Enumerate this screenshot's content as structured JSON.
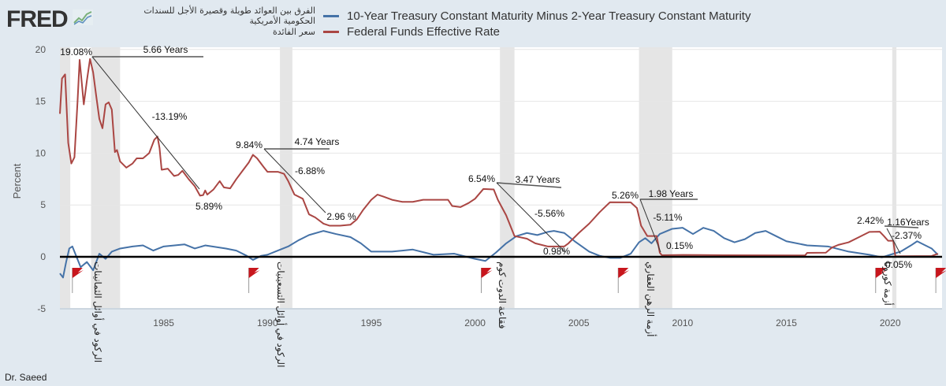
{
  "header": {
    "logo": "FRED",
    "logo_icon": "chart-line-icon"
  },
  "legend": [
    {
      "ar": "الفرق بين العوائد طويلة وقصيرة الأجل للسندات الحكومية الأمريكية",
      "en": "10-Year Treasury Constant Maturity Minus 2-Year Treasury Constant Maturity",
      "color": "#4572a7"
    },
    {
      "ar": "سعر الفائدة",
      "en": "Federal Funds Effective Rate",
      "color": "#aa4643"
    }
  ],
  "credit": "Dr. Saeed",
  "chart_data": {
    "type": "line",
    "ylabel": "Percent",
    "xlabel": "",
    "ylim": [
      -5,
      20
    ],
    "xlim": [
      1980,
      2022.5
    ],
    "yticks": [
      "20",
      "15",
      "10",
      "5",
      "0",
      "-5"
    ],
    "ytick_values": [
      20,
      15,
      10,
      5,
      0,
      -5
    ],
    "xticks": [
      "1985",
      "1990",
      "1995",
      "2000",
      "2005",
      "2010",
      "2015",
      "2020"
    ],
    "xtick_values": [
      1985,
      1990,
      1995,
      2000,
      2005,
      2010,
      2015,
      2020
    ],
    "recessions": [
      [
        1980.0,
        1980.5
      ],
      [
        1981.5,
        1982.9
      ],
      [
        1990.6,
        1991.2
      ],
      [
        2001.2,
        2001.9
      ],
      [
        2007.9,
        2009.5
      ],
      [
        2020.1,
        2020.3
      ]
    ],
    "recession_labels": [
      "الركود في أوائل الثمانينات",
      "الركود في أوائل التسعينيات",
      "فقاعة الدوت كوم",
      "أزمة الرهن العقاري",
      "أزمة كورونا"
    ],
    "flags": [
      1980.6,
      1989.1,
      2000.3,
      2006.9,
      2019.3,
      2022.2
    ],
    "series": [
      {
        "name": "10-Year Treasury Constant Maturity Minus 2-Year Treasury Constant Maturity",
        "color": "#4572a7",
        "points": [
          [
            1980.0,
            -1.6
          ],
          [
            1980.15,
            -2.0
          ],
          [
            1980.3,
            -0.5
          ],
          [
            1980.45,
            0.8
          ],
          [
            1980.6,
            1.0
          ],
          [
            1980.8,
            0.0
          ],
          [
            1981.0,
            -1.0
          ],
          [
            1981.3,
            -0.5
          ],
          [
            1981.6,
            -1.3
          ],
          [
            1981.9,
            0.3
          ],
          [
            1982.2,
            -0.2
          ],
          [
            1982.5,
            0.5
          ],
          [
            1982.9,
            0.8
          ],
          [
            1983.5,
            1.0
          ],
          [
            1984.0,
            1.1
          ],
          [
            1984.5,
            0.6
          ],
          [
            1985.0,
            1.0
          ],
          [
            1986.0,
            1.2
          ],
          [
            1986.5,
            0.8
          ],
          [
            1987.0,
            1.1
          ],
          [
            1988.0,
            0.8
          ],
          [
            1988.5,
            0.6
          ],
          [
            1989.0,
            0.1
          ],
          [
            1989.3,
            -0.3
          ],
          [
            1989.7,
            0.1
          ],
          [
            1990.0,
            0.2
          ],
          [
            1990.5,
            0.6
          ],
          [
            1991.0,
            1.0
          ],
          [
            1991.5,
            1.6
          ],
          [
            1992.0,
            2.1
          ],
          [
            1992.7,
            2.5
          ],
          [
            1993.3,
            2.2
          ],
          [
            1994.0,
            1.9
          ],
          [
            1994.5,
            1.3
          ],
          [
            1995.0,
            0.5
          ],
          [
            1996.0,
            0.5
          ],
          [
            1997.0,
            0.7
          ],
          [
            1998.0,
            0.2
          ],
          [
            1999.0,
            0.3
          ],
          [
            2000.0,
            -0.2
          ],
          [
            2000.5,
            -0.4
          ],
          [
            2001.0,
            0.4
          ],
          [
            2001.5,
            1.3
          ],
          [
            2002.0,
            2.0
          ],
          [
            2002.5,
            2.3
          ],
          [
            2003.0,
            2.1
          ],
          [
            2003.5,
            2.4
          ],
          [
            2003.8,
            2.5
          ],
          [
            2004.3,
            2.3
          ],
          [
            2004.8,
            1.5
          ],
          [
            2005.5,
            0.5
          ],
          [
            2006.0,
            0.1
          ],
          [
            2006.5,
            -0.1
          ],
          [
            2007.0,
            -0.1
          ],
          [
            2007.5,
            0.3
          ],
          [
            2007.9,
            1.4
          ],
          [
            2008.2,
            1.8
          ],
          [
            2008.5,
            1.3
          ],
          [
            2008.9,
            2.2
          ],
          [
            2009.5,
            2.7
          ],
          [
            2010.0,
            2.8
          ],
          [
            2010.5,
            2.2
          ],
          [
            2011.0,
            2.8
          ],
          [
            2011.5,
            2.5
          ],
          [
            2012.0,
            1.8
          ],
          [
            2012.5,
            1.4
          ],
          [
            2013.0,
            1.7
          ],
          [
            2013.5,
            2.3
          ],
          [
            2014.0,
            2.5
          ],
          [
            2014.5,
            2.0
          ],
          [
            2015.0,
            1.5
          ],
          [
            2016.0,
            1.1
          ],
          [
            2017.0,
            1.0
          ],
          [
            2018.0,
            0.5
          ],
          [
            2019.0,
            0.2
          ],
          [
            2019.6,
            -0.05
          ],
          [
            2020.0,
            0.2
          ],
          [
            2020.5,
            0.5
          ],
          [
            2021.0,
            1.1
          ],
          [
            2021.3,
            1.5
          ],
          [
            2021.6,
            1.2
          ],
          [
            2022.0,
            0.8
          ],
          [
            2022.3,
            0.2
          ]
        ]
      },
      {
        "name": "Federal Funds Effective Rate",
        "color": "#aa4643",
        "points": [
          [
            1980.0,
            13.8
          ],
          [
            1980.1,
            17.2
          ],
          [
            1980.25,
            17.6
          ],
          [
            1980.4,
            11.0
          ],
          [
            1980.55,
            9.0
          ],
          [
            1980.7,
            9.6
          ],
          [
            1980.85,
            15.0
          ],
          [
            1980.95,
            19.0
          ],
          [
            1981.15,
            14.7
          ],
          [
            1981.3,
            17.0
          ],
          [
            1981.45,
            19.08
          ],
          [
            1981.6,
            17.8
          ],
          [
            1981.75,
            15.5
          ],
          [
            1981.9,
            13.3
          ],
          [
            1982.05,
            12.4
          ],
          [
            1982.2,
            14.7
          ],
          [
            1982.35,
            14.9
          ],
          [
            1982.5,
            14.2
          ],
          [
            1982.65,
            10.1
          ],
          [
            1982.75,
            10.3
          ],
          [
            1982.9,
            9.2
          ],
          [
            1983.2,
            8.6
          ],
          [
            1983.5,
            9.0
          ],
          [
            1983.7,
            9.5
          ],
          [
            1984.0,
            9.5
          ],
          [
            1984.3,
            10.0
          ],
          [
            1984.55,
            11.3
          ],
          [
            1984.7,
            11.6
          ],
          [
            1984.8,
            10.5
          ],
          [
            1984.9,
            8.4
          ],
          [
            1985.2,
            8.5
          ],
          [
            1985.5,
            7.8
          ],
          [
            1985.7,
            7.9
          ],
          [
            1985.9,
            8.3
          ],
          [
            1986.2,
            7.5
          ],
          [
            1986.5,
            6.8
          ],
          [
            1986.75,
            5.9
          ],
          [
            1986.9,
            5.95
          ],
          [
            1987.0,
            6.4
          ],
          [
            1987.1,
            6.0
          ],
          [
            1987.4,
            6.5
          ],
          [
            1987.7,
            7.3
          ],
          [
            1987.9,
            6.7
          ],
          [
            1988.2,
            6.6
          ],
          [
            1988.5,
            7.5
          ],
          [
            1988.8,
            8.3
          ],
          [
            1989.1,
            9.1
          ],
          [
            1989.3,
            9.84
          ],
          [
            1989.5,
            9.5
          ],
          [
            1989.8,
            8.7
          ],
          [
            1990.0,
            8.2
          ],
          [
            1990.5,
            8.2
          ],
          [
            1990.8,
            8.0
          ],
          [
            1991.0,
            7.3
          ],
          [
            1991.3,
            6.0
          ],
          [
            1991.7,
            5.6
          ],
          [
            1992.0,
            4.1
          ],
          [
            1992.3,
            3.8
          ],
          [
            1992.7,
            3.2
          ],
          [
            1993.0,
            3.0
          ],
          [
            1993.5,
            3.0
          ],
          [
            1994.0,
            3.1
          ],
          [
            1994.3,
            3.6
          ],
          [
            1994.6,
            4.5
          ],
          [
            1995.0,
            5.5
          ],
          [
            1995.3,
            6.0
          ],
          [
            1995.6,
            5.8
          ],
          [
            1996.0,
            5.5
          ],
          [
            1996.5,
            5.3
          ],
          [
            1997.0,
            5.3
          ],
          [
            1997.5,
            5.5
          ],
          [
            1998.0,
            5.5
          ],
          [
            1998.7,
            5.5
          ],
          [
            1998.9,
            4.9
          ],
          [
            1999.3,
            4.8
          ],
          [
            1999.7,
            5.2
          ],
          [
            2000.0,
            5.6
          ],
          [
            2000.4,
            6.54
          ],
          [
            2000.9,
            6.5
          ],
          [
            2001.1,
            5.5
          ],
          [
            2001.5,
            4.0
          ],
          [
            2001.9,
            2.0
          ],
          [
            2002.5,
            1.75
          ],
          [
            2002.9,
            1.3
          ],
          [
            2003.5,
            1.0
          ],
          [
            2004.3,
            1.0
          ],
          [
            2004.5,
            1.3
          ],
          [
            2005.0,
            2.3
          ],
          [
            2005.5,
            3.2
          ],
          [
            2006.0,
            4.3
          ],
          [
            2006.5,
            5.26
          ],
          [
            2007.5,
            5.25
          ],
          [
            2007.8,
            4.7
          ],
          [
            2008.0,
            3.0
          ],
          [
            2008.3,
            2.0
          ],
          [
            2008.75,
            2.0
          ],
          [
            2008.9,
            0.4
          ],
          [
            2009.0,
            0.15
          ],
          [
            2010.0,
            0.18
          ],
          [
            2012.0,
            0.15
          ],
          [
            2015.9,
            0.13
          ],
          [
            2016.0,
            0.38
          ],
          [
            2016.9,
            0.4
          ],
          [
            2017.2,
            0.9
          ],
          [
            2017.5,
            1.15
          ],
          [
            2018.0,
            1.4
          ],
          [
            2018.5,
            1.9
          ],
          [
            2019.0,
            2.4
          ],
          [
            2019.5,
            2.42
          ],
          [
            2019.7,
            2.0
          ],
          [
            2019.9,
            1.55
          ],
          [
            2020.15,
            1.55
          ],
          [
            2020.25,
            0.05
          ],
          [
            2022.0,
            0.08
          ],
          [
            2022.3,
            0.3
          ]
        ]
      }
    ],
    "annotations": [
      {
        "peak": "19.08%",
        "duration": "5.66 Years",
        "change": "-13.19%",
        "trough": "5.89%"
      },
      {
        "peak": "9.84%",
        "duration": "4.74 Years",
        "change": "-6.88%",
        "trough": "2.96 %"
      },
      {
        "peak": "6.54%",
        "duration": "3.47 Years",
        "change": "-5.56%",
        "trough": "0.98%"
      },
      {
        "peak": "5.26%",
        "duration": "1.98 Years",
        "change": "-5.11%",
        "trough": "0.15%"
      },
      {
        "peak": "2.42%",
        "duration": "1.16Years",
        "change": "-2.37%",
        "trough": "0.05%"
      }
    ]
  }
}
